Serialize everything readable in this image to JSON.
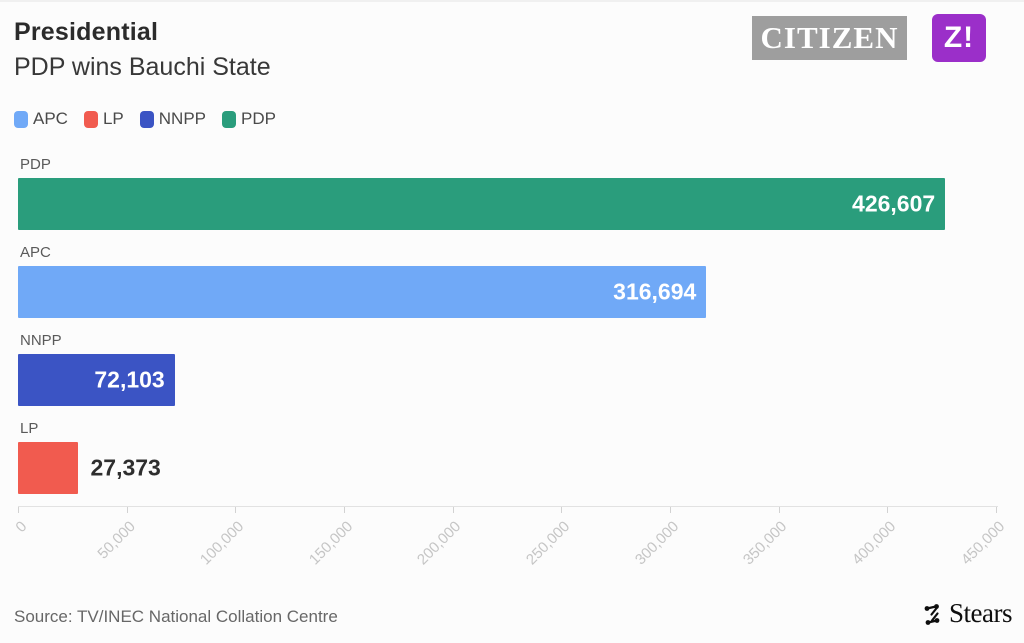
{
  "header": {
    "title": "Presidential",
    "subtitle": "PDP wins Bauchi State",
    "logos": {
      "citizen": "CITIZEN",
      "z": "Z!"
    }
  },
  "legend": [
    {
      "label": "APC",
      "color": "#70A9F7"
    },
    {
      "label": "LP",
      "color": "#F15B4F"
    },
    {
      "label": "NNPP",
      "color": "#3B54C4"
    },
    {
      "label": "PDP",
      "color": "#2A9D7C"
    }
  ],
  "chart_data": {
    "type": "bar",
    "orientation": "horizontal",
    "title": "Presidential",
    "subtitle": "PDP wins Bauchi State",
    "categories": [
      "PDP",
      "APC",
      "NNPP",
      "LP"
    ],
    "values": [
      426607,
      316694,
      72103,
      27373
    ],
    "value_labels": [
      "426,607",
      "316,694",
      "72,103",
      "27,373"
    ],
    "colors": [
      "#2A9D7C",
      "#70A9F7",
      "#3B54C4",
      "#F15B4F"
    ],
    "xlim": [
      0,
      450000
    ],
    "x_tick_values": [
      0,
      50000,
      100000,
      150000,
      200000,
      250000,
      300000,
      350000,
      400000,
      450000
    ],
    "x_tick_labels": [
      "0",
      "50,000",
      "100,000",
      "150,000",
      "200,000",
      "250,000",
      "300,000",
      "350,000",
      "400,000",
      "450,000"
    ],
    "grid": false,
    "legend_position": "top",
    "xlabel": "",
    "ylabel": ""
  },
  "footer": {
    "source": "Source: TV/INEC National Collation Centre",
    "brand": "Stears"
  }
}
